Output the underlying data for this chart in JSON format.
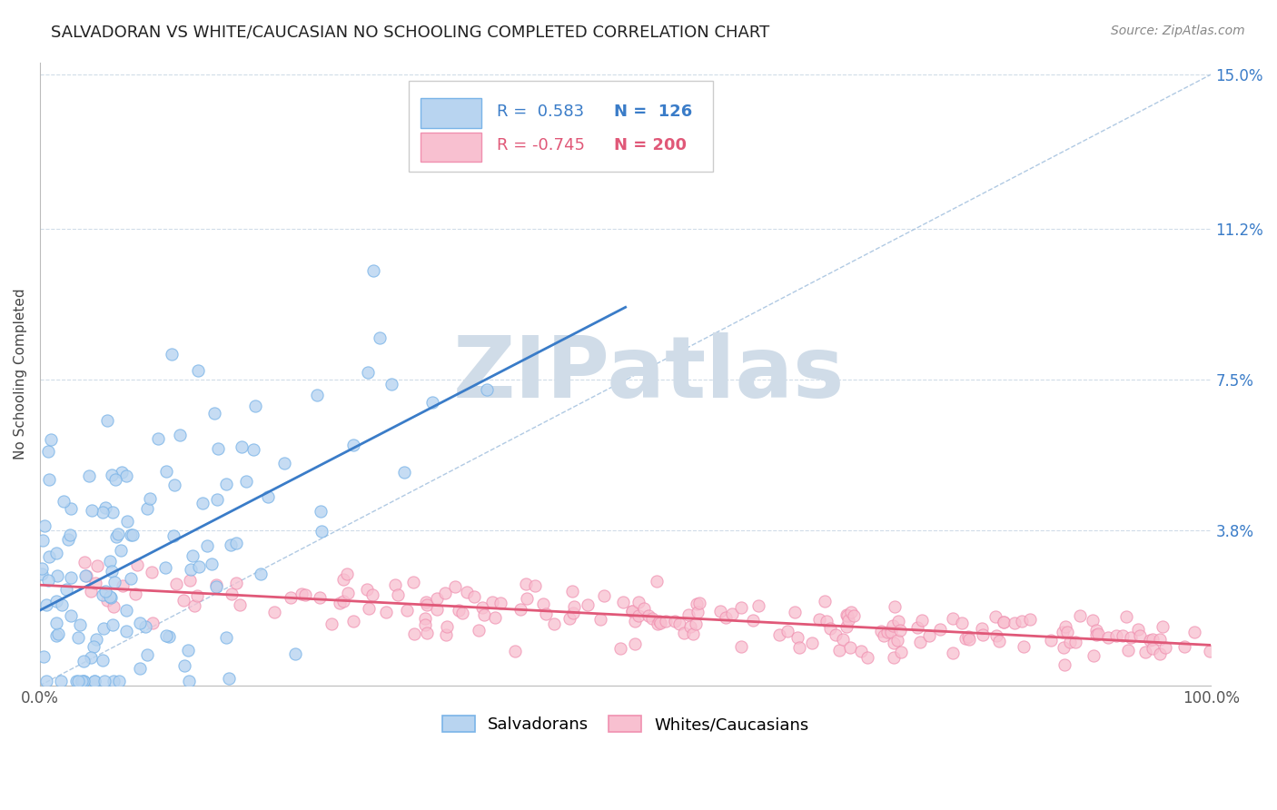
{
  "title": "SALVADORAN VS WHITE/CAUCASIAN NO SCHOOLING COMPLETED CORRELATION CHART",
  "source": "Source: ZipAtlas.com",
  "ylabel": "No Schooling Completed",
  "x_min": 0.0,
  "x_max": 100.0,
  "y_min": 0.0,
  "y_max": 15.0,
  "y_ticks": [
    3.8,
    7.5,
    11.2,
    15.0
  ],
  "salvadoran_color_edge": "#7ab4e8",
  "salvadoran_color_fill": "#b8d4f0",
  "white_color_edge": "#f090b0",
  "white_color_fill": "#f8c0d0",
  "trend_blue": "#3a7cc8",
  "trend_pink": "#e05878",
  "R_salvadoran": 0.583,
  "N_salvadoran": 126,
  "R_white": -0.745,
  "N_white": 200,
  "ref_line_color": "#a8c4e0",
  "grid_color": "#d0dce8",
  "background_color": "#ffffff",
  "title_fontsize": 13,
  "legend_fontsize": 13,
  "axis_label_fontsize": 11,
  "tick_fontsize": 12,
  "watermark_text": "ZIPatlas",
  "watermark_color": "#d0dce8",
  "watermark_fontsize": 68,
  "source_color": "#888888"
}
